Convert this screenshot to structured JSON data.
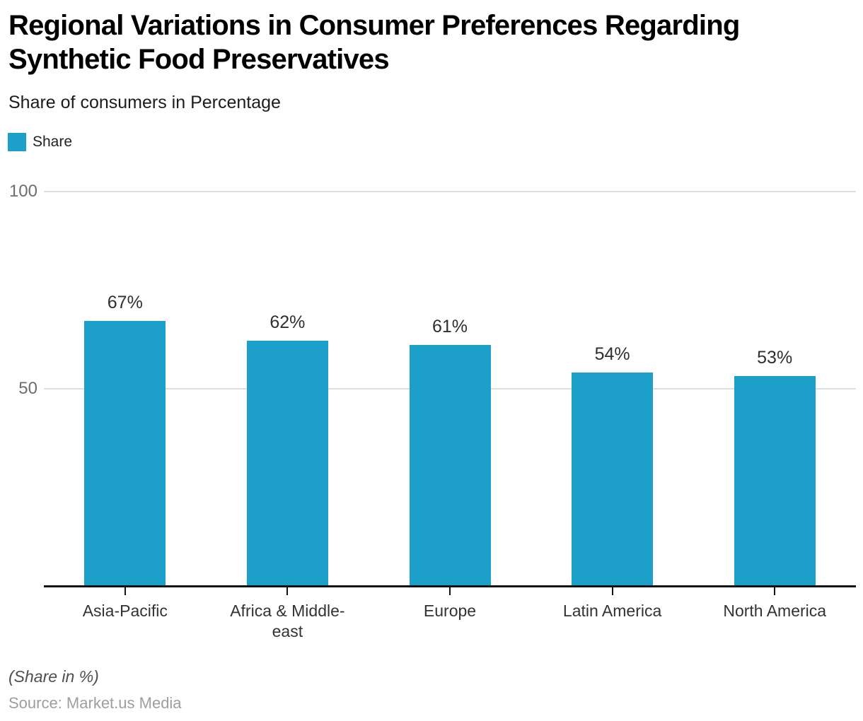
{
  "header": {
    "title": "Regional Variations in Consumer Preferences Regarding Synthetic Food Preservatives",
    "subtitle": "Share of consumers in Percentage"
  },
  "legend": {
    "label": "Share",
    "color": "#1CA0C9"
  },
  "chart_data": {
    "type": "bar",
    "title": "Regional Variations in Consumer Preferences Regarding Synthetic Food Preservatives",
    "subtitle": "Share of consumers in Percentage",
    "series_name": "Share",
    "categories": [
      "Asia-Pacific",
      "Africa & Middle-east",
      "Europe",
      "Latin America",
      "North America"
    ],
    "values": [
      67,
      62,
      61,
      54,
      53
    ],
    "value_labels": [
      "67%",
      "62%",
      "61%",
      "54%",
      "53%"
    ],
    "bar_color": "#1CA0C9",
    "ylabel": "Share of consumers in Percentage",
    "xlabel": "",
    "ylim": [
      0,
      100
    ],
    "yticks": [
      50,
      100
    ],
    "grid": "horizontal gridlines at 50 and 100",
    "legend_position": "top-left",
    "value_label_position": "above bars"
  },
  "footer": {
    "note": "(Share in %)",
    "source": "Source: Market.us Media"
  }
}
